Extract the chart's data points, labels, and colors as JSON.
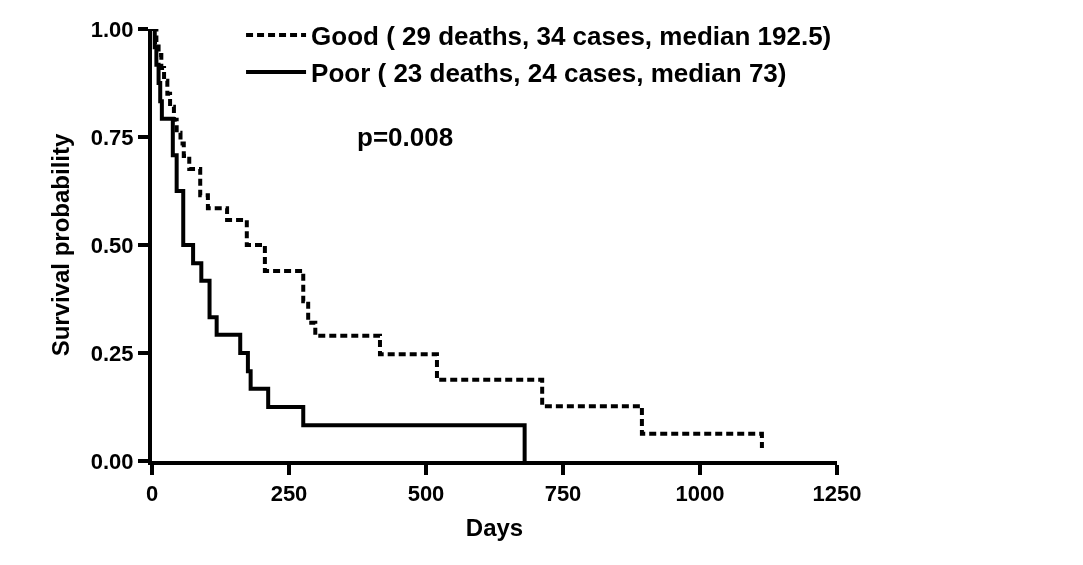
{
  "chart_data": {
    "type": "step",
    "xlabel": "Days",
    "ylabel": "Survival probability",
    "annotations": [
      "p=0.008"
    ],
    "xlim": [
      0,
      1250
    ],
    "xticks": [
      0,
      250,
      500,
      750,
      1000,
      1250
    ],
    "ylim": [
      0,
      1
    ],
    "yticks": [
      {
        "value": 0,
        "label": "0.00"
      },
      0.25,
      {
        "value": 0.5,
        "label": "0.50"
      },
      0.75,
      {
        "value": 1,
        "label": "1.00"
      }
    ],
    "legend": "top right",
    "marker": "none",
    "series": [
      {
        "name": "Good ( 29 deaths, 34 cases, median 192.5)",
        "color": "#000000",
        "line_style": "dashed",
        "x": [
          0,
          8,
          12,
          17,
          22,
          28,
          33,
          40,
          45,
          52,
          58,
          68,
          88,
          102,
          137,
          173,
          206,
          276,
          285,
          298,
          343,
          416,
          520,
          712,
          894,
          1113
        ],
        "values": [
          1.0,
          0.97,
          0.94,
          0.91,
          0.88,
          0.85,
          0.82,
          0.79,
          0.76,
          0.735,
          0.706,
          0.676,
          0.615,
          0.585,
          0.558,
          0.5,
          0.44,
          0.37,
          0.32,
          0.29,
          0.29,
          0.247,
          0.188,
          0.127,
          0.063,
          0.03
        ]
      },
      {
        "name": "Poor ( 23 deaths, 24 cases, median 73)",
        "color": "#000000",
        "line_style": "solid",
        "x": [
          0,
          5,
          8,
          12,
          15,
          18,
          38,
          45,
          57,
          75,
          90,
          105,
          118,
          161,
          175,
          180,
          212,
          276,
          680
        ],
        "values": [
          1.0,
          0.958,
          0.917,
          0.875,
          0.833,
          0.792,
          0.708,
          0.625,
          0.5,
          0.458,
          0.417,
          0.333,
          0.292,
          0.25,
          0.208,
          0.167,
          0.125,
          0.083,
          0.0
        ]
      }
    ]
  }
}
